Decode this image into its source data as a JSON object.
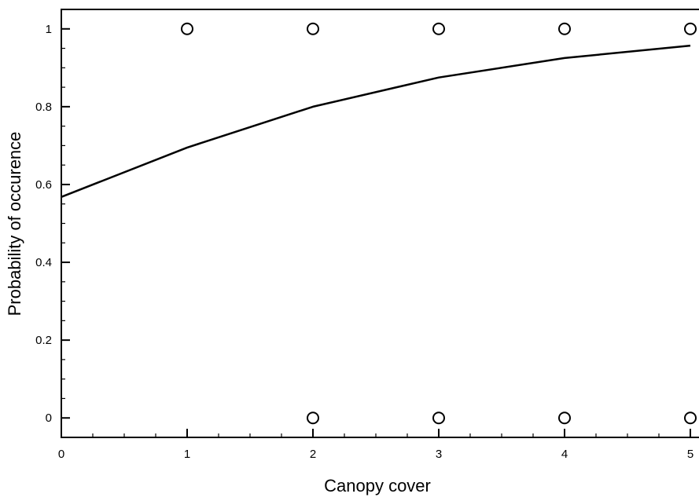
{
  "chart_data": {
    "type": "scatter",
    "title": "",
    "xlabel": "Canopy cover",
    "ylabel": "Probability of occurence",
    "xlim": [
      0,
      5
    ],
    "ylim": [
      -0.05,
      1.05
    ],
    "xticks": [
      0,
      1,
      2,
      3,
      4,
      5
    ],
    "xtick_labels": [
      "0",
      "1",
      "2",
      "3",
      "4",
      "5"
    ],
    "yticks": [
      0,
      0.2,
      0.4,
      0.6,
      0.8,
      1
    ],
    "ytick_labels": [
      "0",
      "0.2",
      "0.4",
      "0.6",
      "0.8",
      "1"
    ],
    "grid": false,
    "series": [
      {
        "type": "scatter",
        "marker": "open-circle",
        "points": [
          {
            "x": 1,
            "y": 1
          },
          {
            "x": 2,
            "y": 1
          },
          {
            "x": 3,
            "y": 1
          },
          {
            "x": 4,
            "y": 1
          },
          {
            "x": 5,
            "y": 1
          },
          {
            "x": 2,
            "y": 0
          },
          {
            "x": 3,
            "y": 0
          },
          {
            "x": 4,
            "y": 0
          },
          {
            "x": 5,
            "y": 0
          }
        ]
      },
      {
        "type": "line",
        "x": [
          0,
          1,
          2,
          3,
          4,
          5
        ],
        "y": [
          0.568,
          0.695,
          0.8,
          0.875,
          0.925,
          0.957
        ]
      }
    ]
  }
}
